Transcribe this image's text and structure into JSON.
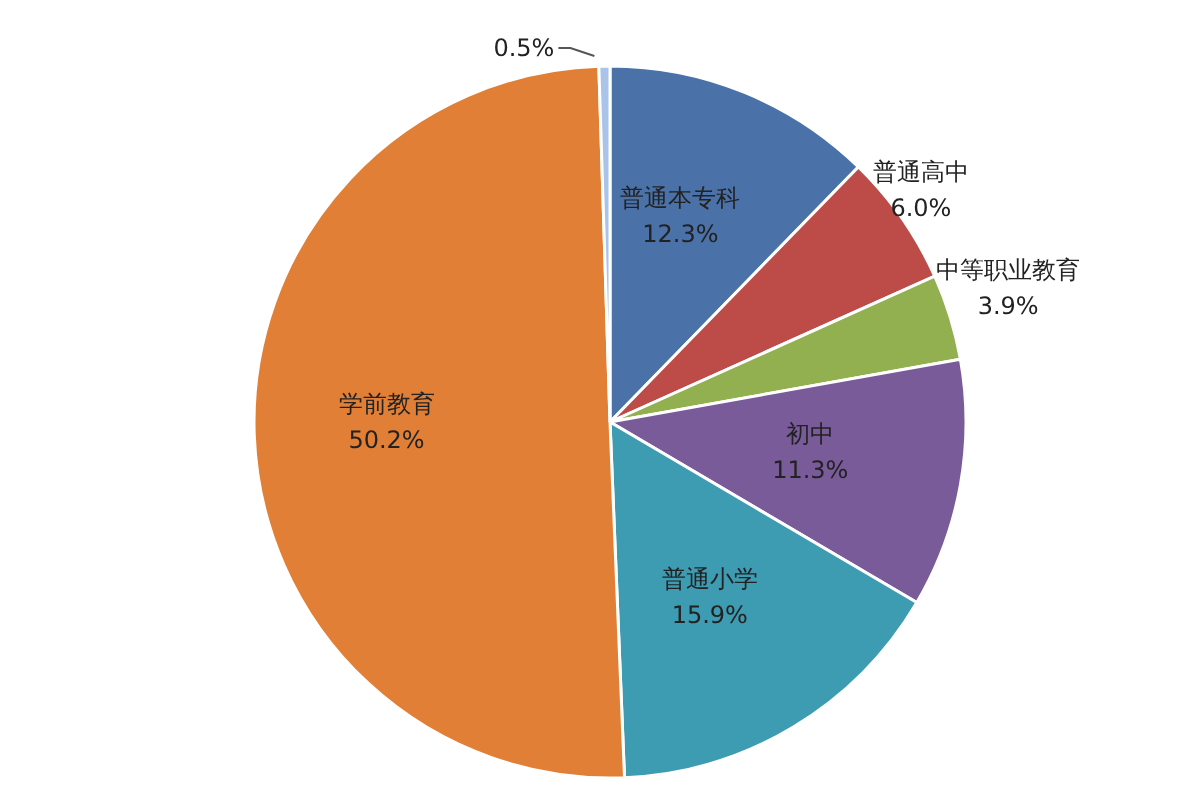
{
  "chart_data": {
    "type": "pie",
    "categories": [
      "普通本专科",
      "普通高中",
      "中等职业教育",
      "初中",
      "普通小学",
      "学前教育",
      null
    ],
    "values": [
      12.3,
      6.0,
      3.9,
      11.3,
      15.9,
      50.2,
      0.5
    ],
    "value_labels": [
      "12.3%",
      "6.0%",
      "3.9%",
      "11.3%",
      "15.9%",
      "50.2%",
      "0.5%"
    ],
    "colors": [
      "#4a72a8",
      "#bd4b48",
      "#92b050",
      "#7a5b9a",
      "#3d9bb2",
      "#e07f35",
      "#a9c4e8"
    ]
  }
}
